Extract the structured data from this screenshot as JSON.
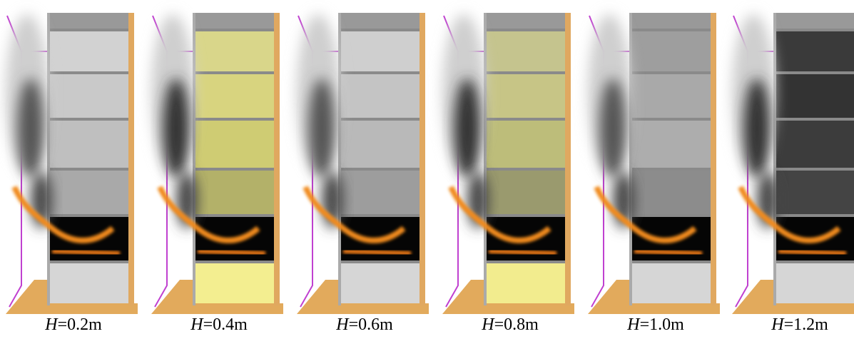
{
  "panels": [
    {
      "symbol": "H",
      "rest": "=0.2m"
    },
    {
      "symbol": "H",
      "rest": "=0.4m"
    },
    {
      "symbol": "H",
      "rest": "=0.6m"
    },
    {
      "symbol": "H",
      "rest": "=0.8m"
    },
    {
      "symbol": "H",
      "rest": "=1.0m"
    },
    {
      "symbol": "H",
      "rest": "=1.2m"
    }
  ]
}
